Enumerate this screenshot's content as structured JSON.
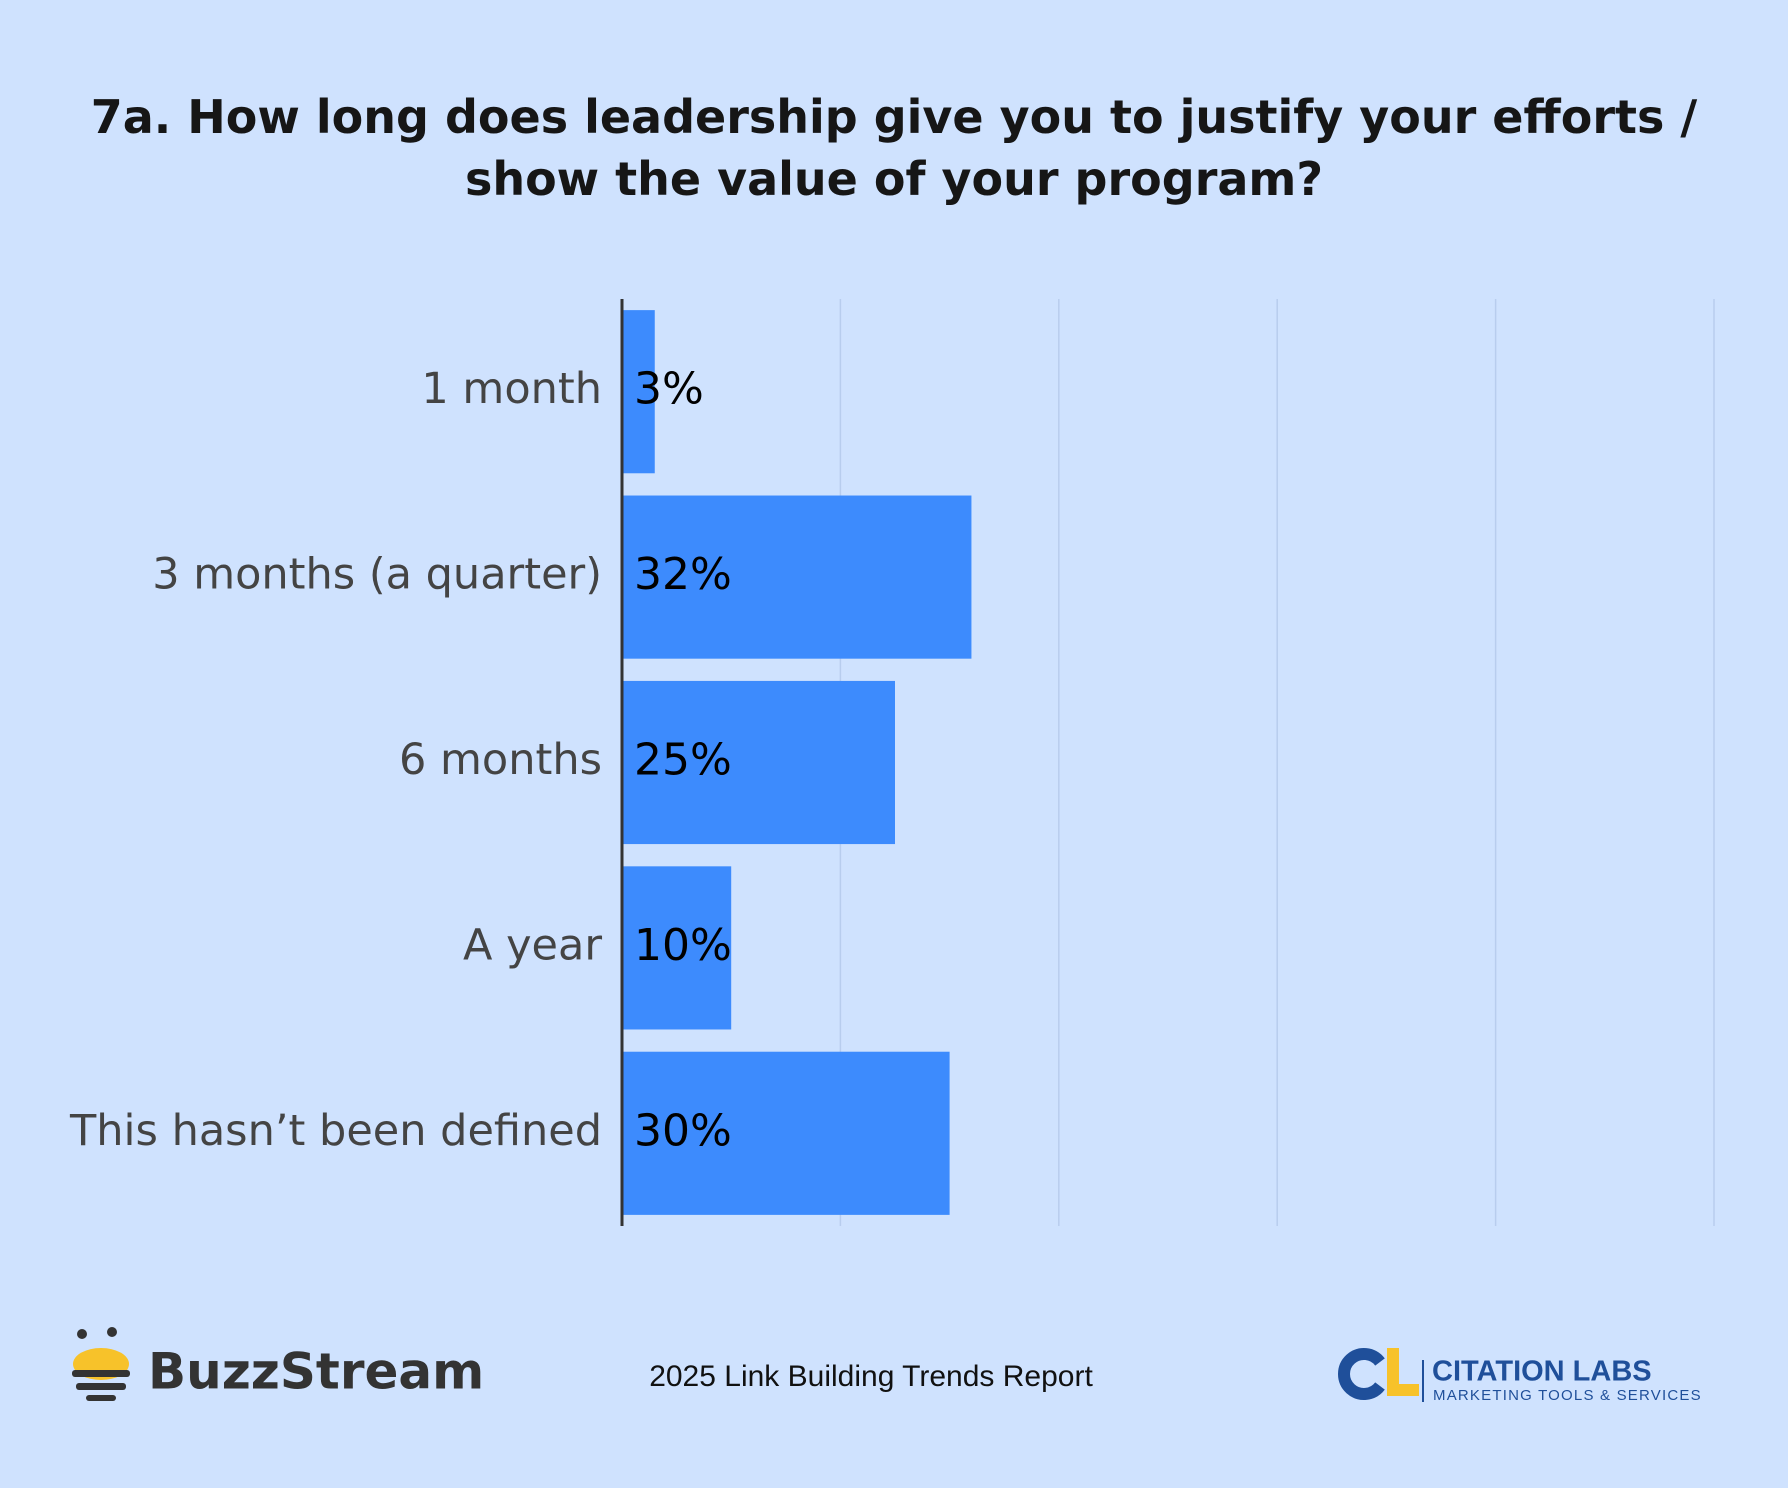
{
  "chart_data": {
    "type": "bar",
    "orientation": "horizontal",
    "title": "7a. How long does leadership give you to justify your efforts / show the value of your program?",
    "categories": [
      "1 month",
      "3 months (a quarter)",
      "6 months",
      "A year",
      "This hasn’t been defined"
    ],
    "values": [
      3,
      32,
      25,
      10,
      30
    ],
    "value_labels": [
      "3%",
      "32%",
      "25%",
      "10%",
      "30%"
    ],
    "color": "#3d8bfd",
    "xlim": [
      0,
      100
    ],
    "xticks": [
      0,
      20,
      40,
      60,
      80,
      100
    ],
    "grid": true
  },
  "footer": {
    "brand": "BuzzStream",
    "report": "2025 Link Building Trends Report",
    "partner": "CITATION LABS",
    "partner_tagline": "MARKETING TOOLS & SERVICES"
  }
}
